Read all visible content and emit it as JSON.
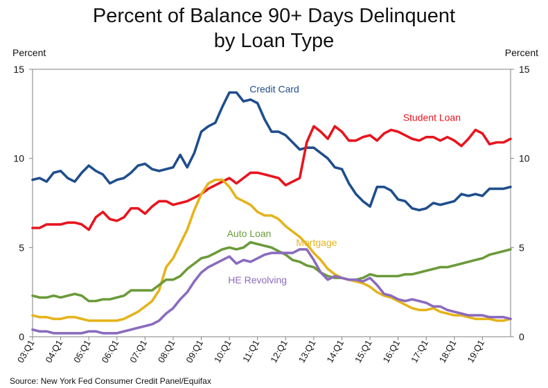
{
  "chart_data": {
    "type": "line",
    "title": "Percent of Balance 90+ Days Delinquent",
    "subtitle": "by Loan Type",
    "ylabel_left": "Percent",
    "ylabel_right": "Percent",
    "ylim": [
      0,
      15
    ],
    "yticks": [
      0,
      5,
      10,
      15
    ],
    "xlim": [
      2003.0,
      2020.0
    ],
    "xticks": [
      {
        "x": 2003,
        "label": "03:Q1"
      },
      {
        "x": 2004,
        "label": "04:Q1"
      },
      {
        "x": 2005,
        "label": "05:Q1"
      },
      {
        "x": 2006,
        "label": "06:Q1"
      },
      {
        "x": 2007,
        "label": "07:Q1"
      },
      {
        "x": 2008,
        "label": "08:Q1"
      },
      {
        "x": 2009,
        "label": "09:Q1"
      },
      {
        "x": 2010,
        "label": "10:Q1"
      },
      {
        "x": 2011,
        "label": "11:Q1"
      },
      {
        "x": 2012,
        "label": "12:Q1"
      },
      {
        "x": 2013,
        "label": "13:Q1"
      },
      {
        "x": 2014,
        "label": "14:Q1"
      },
      {
        "x": 2015,
        "label": "15:Q1"
      },
      {
        "x": 2016,
        "label": "16:Q1"
      },
      {
        "x": 2017,
        "label": "17:Q1"
      },
      {
        "x": 2018,
        "label": "18:Q1"
      },
      {
        "x": 2019,
        "label": "19:Q1"
      }
    ],
    "grid": false,
    "x_start": 2003.0,
    "x_step": 0.25,
    "series": [
      {
        "name": "Credit Card",
        "color": "#1f4e8c",
        "values": [
          8.8,
          8.9,
          8.7,
          9.2,
          9.3,
          8.9,
          8.7,
          9.2,
          9.6,
          9.3,
          9.1,
          8.6,
          8.8,
          8.9,
          9.2,
          9.6,
          9.7,
          9.4,
          9.3,
          9.4,
          9.5,
          10.2,
          9.5,
          10.3,
          11.5,
          11.8,
          12.0,
          12.9,
          13.7,
          13.7,
          13.2,
          13.3,
          13.1,
          12.2,
          11.5,
          11.5,
          11.3,
          10.9,
          10.5,
          10.6,
          10.6,
          10.3,
          10.0,
          9.5,
          9.4,
          8.6,
          8.0,
          7.6,
          7.3,
          8.4,
          8.4,
          8.2,
          7.7,
          7.6,
          7.2,
          7.1,
          7.2,
          7.5,
          7.4,
          7.5,
          7.6,
          8.0,
          7.9,
          8.0,
          7.9,
          8.3,
          8.3,
          8.3,
          8.4
        ]
      },
      {
        "name": "Student Loan",
        "color": "#e8141e",
        "values": [
          6.1,
          6.1,
          6.3,
          6.3,
          6.3,
          6.4,
          6.4,
          6.3,
          6.0,
          6.7,
          7.0,
          6.6,
          6.5,
          6.7,
          7.2,
          7.2,
          6.9,
          7.3,
          7.6,
          7.6,
          7.4,
          7.5,
          7.6,
          7.8,
          8.0,
          8.3,
          8.5,
          8.7,
          8.9,
          8.6,
          8.9,
          9.2,
          9.2,
          9.1,
          9.0,
          8.9,
          8.5,
          8.7,
          8.9,
          10.9,
          11.8,
          11.5,
          11.1,
          11.8,
          11.5,
          11.0,
          11.0,
          11.2,
          11.3,
          11.0,
          11.4,
          11.6,
          11.5,
          11.3,
          11.1,
          11.0,
          11.2,
          11.2,
          11.0,
          11.2,
          11.0,
          10.7,
          11.1,
          11.6,
          11.4,
          10.8,
          10.9,
          10.9,
          11.1
        ]
      },
      {
        "name": "Mortgage",
        "color": "#e5b31b",
        "values": [
          1.2,
          1.1,
          1.1,
          1.0,
          1.0,
          1.1,
          1.1,
          1.0,
          0.9,
          0.9,
          0.9,
          0.9,
          0.9,
          1.0,
          1.2,
          1.4,
          1.7,
          2.0,
          2.6,
          3.9,
          4.4,
          5.2,
          6.0,
          7.1,
          8.0,
          8.6,
          8.8,
          8.8,
          8.4,
          7.8,
          7.6,
          7.4,
          7.0,
          6.8,
          6.8,
          6.6,
          6.2,
          5.9,
          5.6,
          5.2,
          4.7,
          4.3,
          3.8,
          3.5,
          3.3,
          3.2,
          3.1,
          3.0,
          2.8,
          2.5,
          2.3,
          2.2,
          2.0,
          1.8,
          1.6,
          1.5,
          1.5,
          1.6,
          1.4,
          1.3,
          1.2,
          1.2,
          1.1,
          1.0,
          1.0,
          1.0,
          0.9,
          0.9,
          1.0
        ]
      },
      {
        "name": "Auto Loan",
        "color": "#6b9a3a",
        "values": [
          2.3,
          2.2,
          2.2,
          2.3,
          2.2,
          2.3,
          2.4,
          2.3,
          2.0,
          2.0,
          2.1,
          2.1,
          2.2,
          2.3,
          2.6,
          2.6,
          2.6,
          2.6,
          2.9,
          3.2,
          3.2,
          3.4,
          3.8,
          4.1,
          4.4,
          4.5,
          4.7,
          4.9,
          5.0,
          4.9,
          5.0,
          5.3,
          5.2,
          5.1,
          5.0,
          4.8,
          4.6,
          4.3,
          4.2,
          4.0,
          3.9,
          3.6,
          3.4,
          3.3,
          3.3,
          3.2,
          3.2,
          3.3,
          3.5,
          3.4,
          3.4,
          3.4,
          3.4,
          3.5,
          3.5,
          3.6,
          3.7,
          3.8,
          3.9,
          3.9,
          4.0,
          4.1,
          4.2,
          4.3,
          4.4,
          4.6,
          4.7,
          4.8,
          4.9
        ]
      },
      {
        "name": "HE Revolving",
        "color": "#8a6bbd",
        "values": [
          0.4,
          0.3,
          0.3,
          0.2,
          0.2,
          0.2,
          0.2,
          0.2,
          0.3,
          0.3,
          0.2,
          0.2,
          0.2,
          0.3,
          0.4,
          0.5,
          0.6,
          0.7,
          0.9,
          1.3,
          1.6,
          2.1,
          2.5,
          3.1,
          3.6,
          3.9,
          4.1,
          4.3,
          4.5,
          4.1,
          4.3,
          4.2,
          4.4,
          4.6,
          4.7,
          4.7,
          4.7,
          4.7,
          4.9,
          4.9,
          4.3,
          3.6,
          3.2,
          3.4,
          3.3,
          3.2,
          3.2,
          3.1,
          3.3,
          2.9,
          2.4,
          2.3,
          2.1,
          2.0,
          2.1,
          2.0,
          1.9,
          1.7,
          1.7,
          1.5,
          1.4,
          1.3,
          1.2,
          1.2,
          1.2,
          1.1,
          1.1,
          1.1,
          1.0
        ]
      }
    ],
    "annotations": [
      {
        "text": "Credit Card",
        "series": "Credit Card",
        "x": 2011.6,
        "y": 13.7,
        "color": "#1f4e8c"
      },
      {
        "text": "Student Loan",
        "series": "Student Loan",
        "x": 2017.2,
        "y": 12.1,
        "color": "#e8141e"
      },
      {
        "text": "Auto Loan",
        "series": "Auto Loan",
        "x": 2010.7,
        "y": 5.6,
        "color": "#6b9a3a"
      },
      {
        "text": "Mortgage",
        "series": "Mortgage",
        "x": 2013.1,
        "y": 5.1,
        "color": "#e5b31b"
      },
      {
        "text": "HE Revolving",
        "series": "HE Revolving",
        "x": 2011.0,
        "y": 3.0,
        "color": "#8a6bbd"
      }
    ]
  },
  "source": "Source: New York Fed Consumer Credit Panel/Equifax"
}
